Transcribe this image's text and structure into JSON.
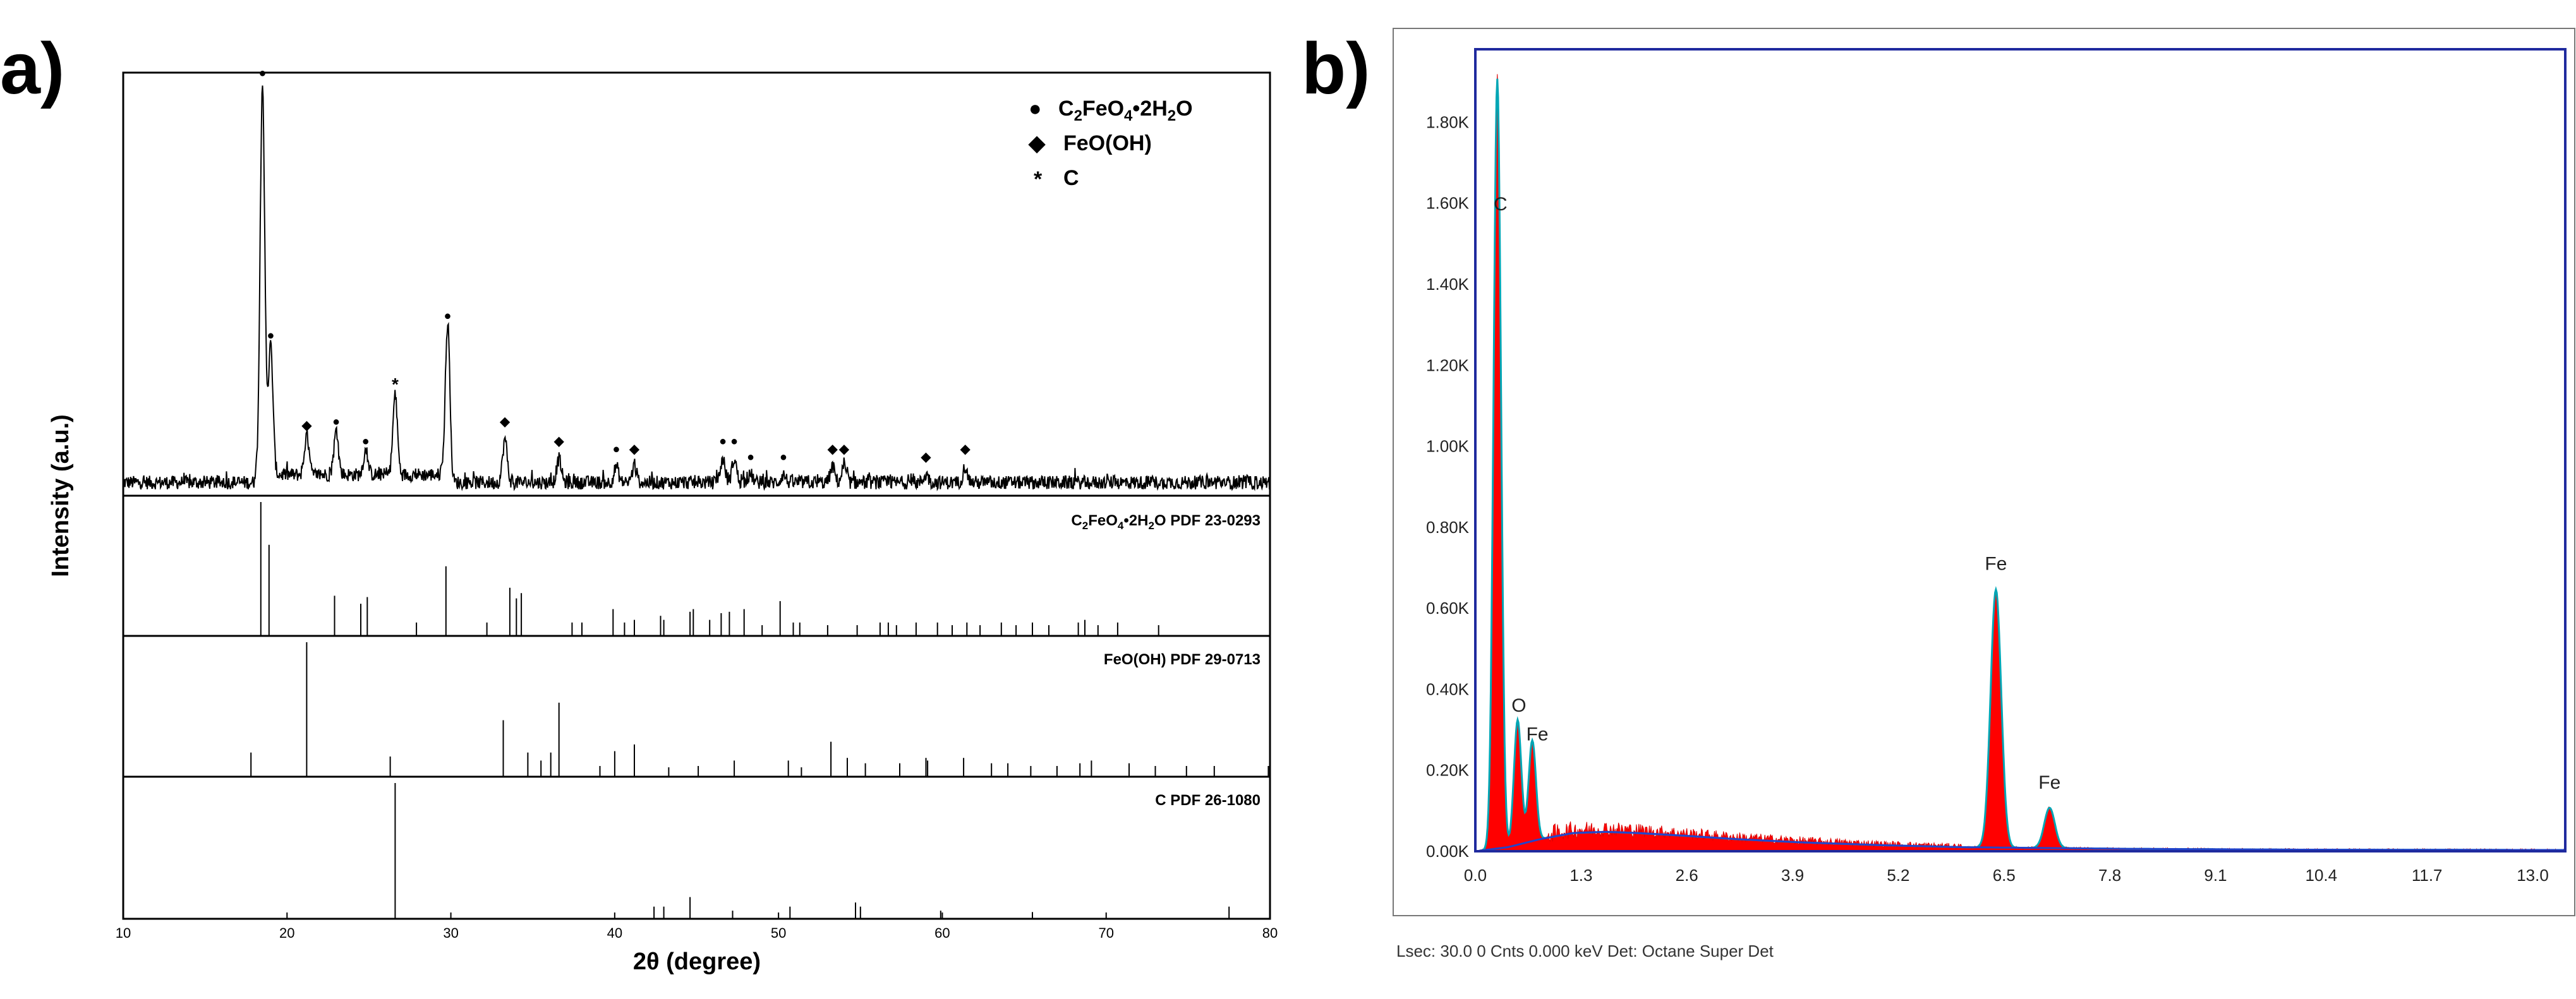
{
  "chart_data": [
    {
      "type": "line",
      "panel": "a)",
      "title": "",
      "xlabel": "2θ (degree)",
      "ylabel": "Intensity (a.u.)",
      "xlim": [
        10,
        80
      ],
      "xticks": [
        "10",
        "20",
        "30",
        "40",
        "50",
        "60",
        "70",
        "80"
      ],
      "legend": [
        {
          "marker": "●",
          "base": "C",
          "sub": "2",
          "mid": "FeO",
          "sub2": "4",
          "tail": "•2H",
          "sub3": "2",
          "end": "O"
        },
        {
          "marker": "◆",
          "text": "FeO(OH)"
        },
        {
          "marker": "*",
          "text": "C"
        }
      ],
      "pattern_peaks": [
        {
          "x": 18.5,
          "h": 1.0,
          "m": "●"
        },
        {
          "x": 19.0,
          "h": 0.33,
          "m": "●"
        },
        {
          "x": 21.2,
          "h": 0.1,
          "m": "◆"
        },
        {
          "x": 23.0,
          "h": 0.11,
          "m": "●"
        },
        {
          "x": 24.8,
          "h": 0.06,
          "m": "●"
        },
        {
          "x": 26.6,
          "h": 0.2,
          "m": "*"
        },
        {
          "x": 29.8,
          "h": 0.38,
          "m": "●"
        },
        {
          "x": 33.3,
          "h": 0.11,
          "m": "◆"
        },
        {
          "x": 36.6,
          "h": 0.06,
          "m": "◆"
        },
        {
          "x": 40.1,
          "h": 0.04,
          "m": "●"
        },
        {
          "x": 41.2,
          "h": 0.04,
          "m": "◆"
        },
        {
          "x": 46.6,
          "h": 0.06,
          "m": "●"
        },
        {
          "x": 47.3,
          "h": 0.06,
          "m": "●"
        },
        {
          "x": 48.3,
          "h": 0.02,
          "m": "●"
        },
        {
          "x": 50.3,
          "h": 0.02,
          "m": "●"
        },
        {
          "x": 53.3,
          "h": 0.04,
          "m": "◆"
        },
        {
          "x": 54.0,
          "h": 0.04,
          "m": "◆"
        },
        {
          "x": 59.0,
          "h": 0.02,
          "m": "◆"
        },
        {
          "x": 61.4,
          "h": 0.04,
          "m": "◆"
        }
      ],
      "references": [
        {
          "title_parts": {
            "a": "C",
            "s1": "2",
            "b": "FeO",
            "s2": "4",
            "c": "•2H",
            "s3": "2",
            "d": "O PDF 23-0293"
          },
          "peaks": [
            [
              18.4,
              1.0
            ],
            [
              18.9,
              0.68
            ],
            [
              22.9,
              0.3
            ],
            [
              24.5,
              0.24
            ],
            [
              24.9,
              0.29
            ],
            [
              27.9,
              0.1
            ],
            [
              29.7,
              0.52
            ],
            [
              32.2,
              0.1
            ],
            [
              33.6,
              0.36
            ],
            [
              34.0,
              0.28
            ],
            [
              34.3,
              0.32
            ],
            [
              37.4,
              0.1
            ],
            [
              38.0,
              0.1
            ],
            [
              39.9,
              0.2
            ],
            [
              40.6,
              0.1
            ],
            [
              41.2,
              0.12
            ],
            [
              42.8,
              0.15
            ],
            [
              43.0,
              0.12
            ],
            [
              44.6,
              0.18
            ],
            [
              44.8,
              0.2
            ],
            [
              45.8,
              0.12
            ],
            [
              46.5,
              0.17
            ],
            [
              47.0,
              0.18
            ],
            [
              47.9,
              0.2
            ],
            [
              49.0,
              0.08
            ],
            [
              50.1,
              0.26
            ],
            [
              50.9,
              0.1
            ],
            [
              51.3,
              0.1
            ],
            [
              53.0,
              0.08
            ],
            [
              54.8,
              0.08
            ],
            [
              56.2,
              0.1
            ],
            [
              56.7,
              0.1
            ],
            [
              57.2,
              0.08
            ],
            [
              58.4,
              0.1
            ],
            [
              59.7,
              0.1
            ],
            [
              60.6,
              0.08
            ],
            [
              61.5,
              0.1
            ],
            [
              62.3,
              0.08
            ],
            [
              63.6,
              0.1
            ],
            [
              64.5,
              0.08
            ],
            [
              65.5,
              0.1
            ],
            [
              66.5,
              0.08
            ],
            [
              68.3,
              0.1
            ],
            [
              68.7,
              0.12
            ],
            [
              69.5,
              0.08
            ],
            [
              70.7,
              0.1
            ],
            [
              73.2,
              0.08
            ]
          ]
        },
        {
          "title_text": "FeO(OH) PDF 29-0713",
          "peaks": [
            [
              17.8,
              0.18
            ],
            [
              21.2,
              1.0
            ],
            [
              26.3,
              0.15
            ],
            [
              33.2,
              0.42
            ],
            [
              34.7,
              0.18
            ],
            [
              35.5,
              0.12
            ],
            [
              36.1,
              0.18
            ],
            [
              36.6,
              0.55
            ],
            [
              39.1,
              0.08
            ],
            [
              40.0,
              0.19
            ],
            [
              41.2,
              0.24
            ],
            [
              43.3,
              0.07
            ],
            [
              45.1,
              0.08
            ],
            [
              47.3,
              0.12
            ],
            [
              50.6,
              0.12
            ],
            [
              51.4,
              0.07
            ],
            [
              53.2,
              0.26
            ],
            [
              54.2,
              0.14
            ],
            [
              55.3,
              0.1
            ],
            [
              57.4,
              0.1
            ],
            [
              59.0,
              0.14
            ],
            [
              59.1,
              0.12
            ],
            [
              61.3,
              0.14
            ],
            [
              63.0,
              0.1
            ],
            [
              64.0,
              0.1
            ],
            [
              65.4,
              0.08
            ],
            [
              67.0,
              0.08
            ],
            [
              68.4,
              0.1
            ],
            [
              69.1,
              0.12
            ],
            [
              71.4,
              0.1
            ],
            [
              73.0,
              0.08
            ],
            [
              74.9,
              0.08
            ],
            [
              76.6,
              0.08
            ],
            [
              79.9,
              0.08
            ]
          ]
        },
        {
          "title_text": "C PDF 26-1080",
          "peaks": [
            [
              26.6,
              1.0
            ],
            [
              42.4,
              0.09
            ],
            [
              43.0,
              0.09
            ],
            [
              44.6,
              0.16
            ],
            [
              47.2,
              0.06
            ],
            [
              50.7,
              0.09
            ],
            [
              54.7,
              0.12
            ],
            [
              55.0,
              0.09
            ],
            [
              59.9,
              0.06
            ],
            [
              65.5,
              0.05
            ],
            [
              77.5,
              0.09
            ]
          ]
        }
      ]
    },
    {
      "type": "area",
      "panel": "b)",
      "title": "",
      "xlabel": "",
      "ylabel": "",
      "xlim": [
        0,
        13.4
      ],
      "ylim": [
        0,
        1980
      ],
      "xticks": [
        "0.0",
        "1.3",
        "2.6",
        "3.9",
        "5.2",
        "6.5",
        "7.8",
        "9.1",
        "10.4",
        "11.7",
        "13.0"
      ],
      "yticks": [
        "0.00K",
        "0.20K",
        "0.40K",
        "0.60K",
        "0.80K",
        "1.00K",
        "1.20K",
        "1.40K",
        "1.60K",
        "1.80K"
      ],
      "peaks": [
        {
          "element": "C",
          "keV": 0.27,
          "counts": 1910
        },
        {
          "element": "O",
          "keV": 0.52,
          "counts": 310
        },
        {
          "element": "Fe",
          "keV": 0.7,
          "counts": 250
        },
        {
          "element": "Fe",
          "keV": 6.4,
          "counts": 640
        },
        {
          "element": "Fe",
          "keV": 7.06,
          "counts": 100
        }
      ],
      "background": [
        [
          0.0,
          0
        ],
        [
          0.4,
          10
        ],
        [
          0.8,
          30
        ],
        [
          1.2,
          45
        ],
        [
          1.6,
          48
        ],
        [
          2.0,
          45
        ],
        [
          2.6,
          38
        ],
        [
          3.2,
          30
        ],
        [
          4.0,
          22
        ],
        [
          5.0,
          15
        ],
        [
          6.0,
          10
        ],
        [
          7.0,
          8
        ],
        [
          8.0,
          6
        ],
        [
          10.0,
          4
        ],
        [
          13.4,
          3
        ]
      ],
      "footer": "Lsec: 30.0 0 Cnts  0.000 keV Det: Octane Super Det",
      "colors": {
        "fill": "#ff0000",
        "fit": "#00a6b5",
        "frame": "#1f2a9e",
        "bkg": "#2244cc"
      }
    }
  ]
}
